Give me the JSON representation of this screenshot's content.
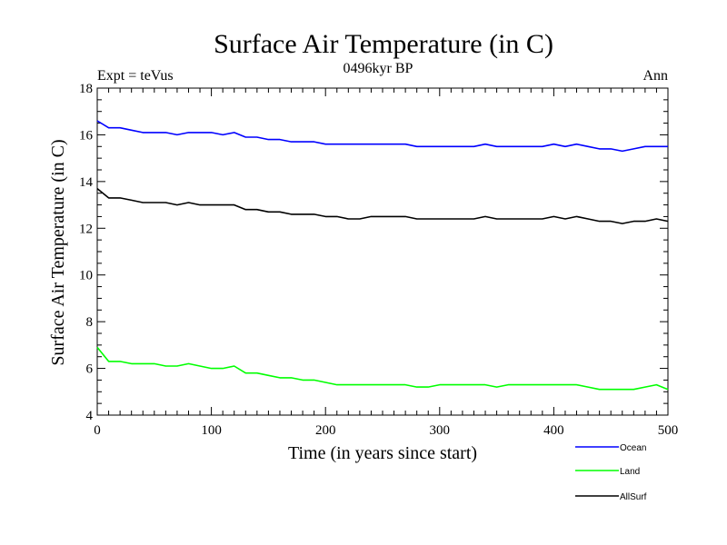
{
  "chart_data": {
    "type": "line",
    "title": "Surface Air Temperature (in C)",
    "subtitle": "0496kyr BP",
    "top_left_label": "Expt = teVus",
    "top_right_label": "Ann",
    "xlabel": "Time (in years since start)",
    "ylabel": "Surface Air Temperature (in C)",
    "xlim": [
      0,
      500
    ],
    "ylim": [
      4,
      18
    ],
    "x_ticks": [
      "0",
      "100",
      "200",
      "300",
      "400",
      "500"
    ],
    "y_ticks": [
      "4",
      "6",
      "8",
      "10",
      "12",
      "14",
      "16",
      "18"
    ],
    "grid": false,
    "legend_position": "bottom-right outside",
    "series": [
      {
        "name": "Ocean",
        "color": "#0000ff",
        "x": [
          0,
          10,
          20,
          30,
          40,
          50,
          60,
          70,
          80,
          90,
          100,
          110,
          120,
          130,
          140,
          150,
          160,
          170,
          180,
          190,
          200,
          210,
          220,
          230,
          240,
          250,
          260,
          270,
          280,
          290,
          300,
          310,
          320,
          330,
          340,
          350,
          360,
          370,
          380,
          390,
          400,
          410,
          420,
          430,
          440,
          450,
          460,
          470,
          480,
          490,
          500
        ],
        "y": [
          16.6,
          16.3,
          16.3,
          16.2,
          16.1,
          16.1,
          16.1,
          16.0,
          16.1,
          16.1,
          16.1,
          16.0,
          16.1,
          15.9,
          15.9,
          15.8,
          15.8,
          15.7,
          15.7,
          15.7,
          15.6,
          15.6,
          15.6,
          15.6,
          15.6,
          15.6,
          15.6,
          15.6,
          15.5,
          15.5,
          15.5,
          15.5,
          15.5,
          15.5,
          15.6,
          15.5,
          15.5,
          15.5,
          15.5,
          15.5,
          15.6,
          15.5,
          15.6,
          15.5,
          15.4,
          15.4,
          15.3,
          15.4,
          15.5,
          15.5,
          15.5
        ]
      },
      {
        "name": "Land",
        "color": "#00ff00",
        "x": [
          0,
          10,
          20,
          30,
          40,
          50,
          60,
          70,
          80,
          90,
          100,
          110,
          120,
          130,
          140,
          150,
          160,
          170,
          180,
          190,
          200,
          210,
          220,
          230,
          240,
          250,
          260,
          270,
          280,
          290,
          300,
          310,
          320,
          330,
          340,
          350,
          360,
          370,
          380,
          390,
          400,
          410,
          420,
          430,
          440,
          450,
          460,
          470,
          480,
          490,
          500
        ],
        "y": [
          6.9,
          6.3,
          6.3,
          6.2,
          6.2,
          6.2,
          6.1,
          6.1,
          6.2,
          6.1,
          6.0,
          6.0,
          6.1,
          5.8,
          5.8,
          5.7,
          5.6,
          5.6,
          5.5,
          5.5,
          5.4,
          5.3,
          5.3,
          5.3,
          5.3,
          5.3,
          5.3,
          5.3,
          5.2,
          5.2,
          5.3,
          5.3,
          5.3,
          5.3,
          5.3,
          5.2,
          5.3,
          5.3,
          5.3,
          5.3,
          5.3,
          5.3,
          5.3,
          5.2,
          5.1,
          5.1,
          5.1,
          5.1,
          5.2,
          5.3,
          5.1
        ]
      },
      {
        "name": "AllSurf",
        "color": "#000000",
        "x": [
          0,
          10,
          20,
          30,
          40,
          50,
          60,
          70,
          80,
          90,
          100,
          110,
          120,
          130,
          140,
          150,
          160,
          170,
          180,
          190,
          200,
          210,
          220,
          230,
          240,
          250,
          260,
          270,
          280,
          290,
          300,
          310,
          320,
          330,
          340,
          350,
          360,
          370,
          380,
          390,
          400,
          410,
          420,
          430,
          440,
          450,
          460,
          470,
          480,
          490,
          500
        ],
        "y": [
          13.7,
          13.3,
          13.3,
          13.2,
          13.1,
          13.1,
          13.1,
          13.0,
          13.1,
          13.0,
          13.0,
          13.0,
          13.0,
          12.8,
          12.8,
          12.7,
          12.7,
          12.6,
          12.6,
          12.6,
          12.5,
          12.5,
          12.4,
          12.4,
          12.5,
          12.5,
          12.5,
          12.5,
          12.4,
          12.4,
          12.4,
          12.4,
          12.4,
          12.4,
          12.5,
          12.4,
          12.4,
          12.4,
          12.4,
          12.4,
          12.5,
          12.4,
          12.5,
          12.4,
          12.3,
          12.3,
          12.2,
          12.3,
          12.3,
          12.4,
          12.3
        ]
      }
    ]
  }
}
